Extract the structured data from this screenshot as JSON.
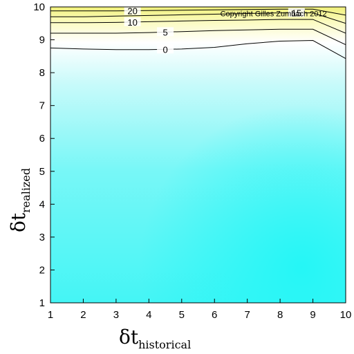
{
  "chart_data": {
    "type": "heatmap",
    "title": "",
    "xlabel": {
      "symbol": "δt",
      "subscript": "historical"
    },
    "ylabel": {
      "symbol": "δt",
      "subscript": "realized"
    },
    "xlim": [
      1,
      10
    ],
    "ylim": [
      1,
      10
    ],
    "x_ticks": [
      "1",
      "2",
      "3",
      "4",
      "5",
      "6",
      "7",
      "8",
      "9",
      "10"
    ],
    "y_ticks": [
      "1",
      "2",
      "3",
      "4",
      "5",
      "6",
      "7",
      "8",
      "9",
      "10"
    ],
    "grid": false,
    "colormap": {
      "low": "#2ef7f7",
      "mid": "#ffffff",
      "high": "#f0f07a"
    },
    "contours": [
      {
        "level": 0,
        "label": "0",
        "label_x": 4.5,
        "points": [
          [
            1,
            8.75
          ],
          [
            2,
            8.72
          ],
          [
            3,
            8.7
          ],
          [
            4,
            8.7
          ],
          [
            5,
            8.72
          ],
          [
            6,
            8.77
          ],
          [
            7,
            8.88
          ],
          [
            8,
            8.96
          ],
          [
            9,
            8.98
          ],
          [
            10,
            8.43
          ]
        ]
      },
      {
        "level": 5,
        "label": "5",
        "label_x": 4.5,
        "points": [
          [
            1,
            9.2
          ],
          [
            2,
            9.2
          ],
          [
            3,
            9.2
          ],
          [
            4,
            9.22
          ],
          [
            5,
            9.25
          ],
          [
            6,
            9.28
          ],
          [
            7,
            9.3
          ],
          [
            8,
            9.32
          ],
          [
            9,
            9.32
          ],
          [
            10,
            8.85
          ]
        ]
      },
      {
        "level": 10,
        "label": "10",
        "label_x": 3.5,
        "points": [
          [
            1,
            9.52
          ],
          [
            2,
            9.52
          ],
          [
            3,
            9.53
          ],
          [
            4,
            9.55
          ],
          [
            5,
            9.57
          ],
          [
            6,
            9.59
          ],
          [
            7,
            9.6
          ],
          [
            8,
            9.62
          ],
          [
            9,
            9.62
          ],
          [
            10,
            9.2
          ]
        ]
      },
      {
        "level": 15,
        "label": "15",
        "label_x": 8.5,
        "points": [
          [
            1,
            9.7
          ],
          [
            2,
            9.7
          ],
          [
            3,
            9.72
          ],
          [
            4,
            9.74
          ],
          [
            5,
            9.76
          ],
          [
            6,
            9.78
          ],
          [
            7,
            9.8
          ],
          [
            8,
            9.82
          ],
          [
            9,
            9.82
          ],
          [
            10,
            9.5
          ]
        ]
      },
      {
        "level": 20,
        "label": "20",
        "label_x": 3.5,
        "points": [
          [
            1,
            9.88
          ],
          [
            2,
            9.88
          ],
          [
            3,
            9.88
          ],
          [
            4,
            9.89
          ],
          [
            5,
            9.9
          ],
          [
            6,
            9.91
          ],
          [
            7,
            9.92
          ],
          [
            8,
            9.93
          ],
          [
            9,
            9.93
          ],
          [
            10,
            9.75
          ]
        ]
      }
    ],
    "annotations": [
      {
        "text": "Copyright Gilles Zumbach 2012",
        "x": 7.8,
        "y": 9.82
      }
    ]
  }
}
